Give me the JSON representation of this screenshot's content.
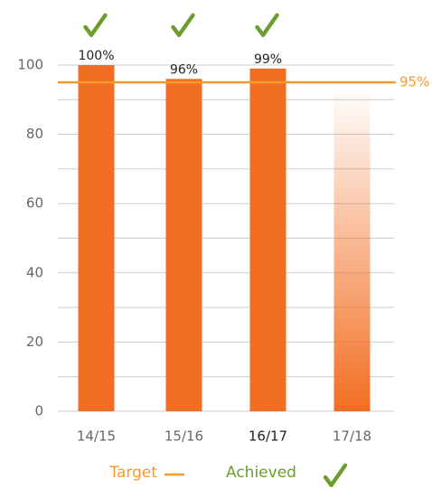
{
  "chart_data": {
    "type": "bar",
    "categories": [
      "14/15",
      "15/16",
      "16/17",
      "17/18"
    ],
    "values": [
      100,
      96,
      99,
      94
    ],
    "value_labels": [
      "100%",
      "96%",
      "99%",
      null
    ],
    "achieved": [
      true,
      true,
      true,
      false
    ],
    "color": "#f26e22",
    "ylim": [
      0,
      100
    ],
    "yticks": [
      0,
      20,
      40,
      60,
      80,
      100
    ],
    "yminorticks": [
      10,
      30,
      50,
      70,
      90
    ],
    "grid": true,
    "target": {
      "value": 95,
      "label": "95%",
      "color": "#f39a2c"
    },
    "legend": {
      "target": "Target",
      "achieved": "Achieved",
      "target_color": "#f39a2c",
      "achieved_color": "#6b9e2b"
    }
  }
}
